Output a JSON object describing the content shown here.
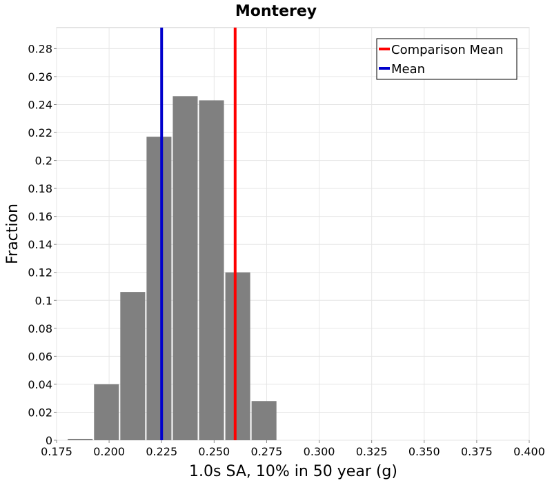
{
  "chart_data": {
    "type": "bar",
    "title": "Monterey",
    "xlabel": "1.0s SA, 10% in 50 year (g)",
    "ylabel": "Fraction",
    "xlim": [
      0.175,
      0.4
    ],
    "ylim": [
      0,
      0.295
    ],
    "x_ticks": [
      "0.175",
      "0.200",
      "0.225",
      "0.250",
      "0.275",
      "0.300",
      "0.325",
      "0.350",
      "0.375",
      "0.400"
    ],
    "y_ticks": [
      "0",
      "0.02",
      "0.04",
      "0.06",
      "0.08",
      "0.1",
      "0.12",
      "0.14",
      "0.16",
      "0.18",
      "0.2",
      "0.22",
      "0.24",
      "0.26",
      "0.28"
    ],
    "bin_width": 0.0125,
    "bins": [
      {
        "center": 0.18625,
        "value": 0.001
      },
      {
        "center": 0.19875,
        "value": 0.04
      },
      {
        "center": 0.21125,
        "value": 0.106
      },
      {
        "center": 0.22375,
        "value": 0.217
      },
      {
        "center": 0.23625,
        "value": 0.246
      },
      {
        "center": 0.24875,
        "value": 0.243
      },
      {
        "center": 0.26125,
        "value": 0.12
      },
      {
        "center": 0.27375,
        "value": 0.028
      }
    ],
    "bar_color": "#808080",
    "lines": [
      {
        "name": "Comparison Mean",
        "x": 0.26,
        "color": "#ff0000"
      },
      {
        "name": "Mean",
        "x": 0.225,
        "color": "#0000cc"
      }
    ],
    "legend": "top-right",
    "grid": true
  }
}
